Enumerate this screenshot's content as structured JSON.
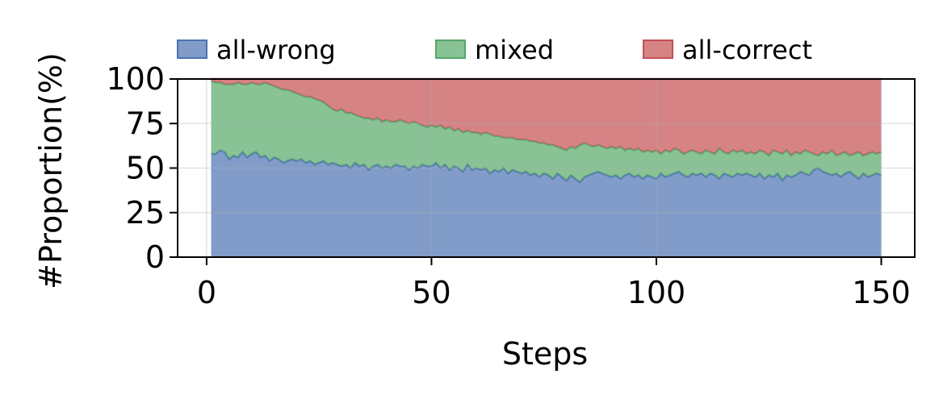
{
  "chart_data": {
    "type": "stacked_area",
    "xlabel": "Steps",
    "ylabel": "#Proportion(%)",
    "x": [
      1,
      2,
      3,
      4,
      5,
      6,
      7,
      8,
      9,
      10,
      11,
      12,
      13,
      14,
      15,
      16,
      17,
      18,
      19,
      20,
      21,
      22,
      23,
      24,
      25,
      26,
      27,
      28,
      29,
      30,
      31,
      32,
      33,
      34,
      35,
      36,
      37,
      38,
      39,
      40,
      41,
      42,
      43,
      44,
      45,
      46,
      47,
      48,
      49,
      50,
      51,
      52,
      53,
      54,
      55,
      56,
      57,
      58,
      59,
      60,
      61,
      62,
      63,
      64,
      65,
      66,
      67,
      68,
      69,
      70,
      71,
      72,
      73,
      74,
      75,
      76,
      77,
      78,
      79,
      80,
      81,
      82,
      83,
      84,
      85,
      86,
      87,
      88,
      89,
      90,
      91,
      92,
      93,
      94,
      95,
      96,
      97,
      98,
      99,
      100,
      101,
      102,
      103,
      104,
      105,
      106,
      107,
      108,
      109,
      110,
      111,
      112,
      113,
      114,
      115,
      116,
      117,
      118,
      119,
      120,
      121,
      122,
      123,
      124,
      125,
      126,
      127,
      128,
      129,
      130,
      131,
      132,
      133,
      134,
      135,
      136,
      137,
      138,
      139,
      140,
      141,
      142,
      143,
      144,
      145,
      146,
      147,
      148,
      149,
      150
    ],
    "series": [
      {
        "name": "all-wrong",
        "color": "#4c72b0",
        "values": [
          58,
          58,
          60,
          59,
          55,
          57,
          56,
          59,
          56,
          58,
          59,
          56,
          57,
          54,
          56,
          55,
          53,
          54,
          55,
          54,
          55,
          53,
          54,
          52,
          53,
          54,
          52,
          53,
          52,
          51,
          52,
          50,
          53,
          51,
          52,
          49,
          51,
          52,
          50,
          51,
          50,
          52,
          51,
          51,
          49,
          51,
          50,
          52,
          51,
          51,
          53,
          50,
          52,
          49,
          51,
          50,
          48,
          52,
          49,
          50,
          49,
          50,
          47,
          49,
          48,
          50,
          47,
          49,
          48,
          47,
          48,
          46,
          47,
          45,
          47,
          46,
          44,
          47,
          45,
          43,
          46,
          44,
          42,
          45,
          46,
          47,
          48,
          47,
          46,
          45,
          46,
          44,
          46,
          47,
          45,
          46,
          44,
          46,
          45,
          44,
          47,
          45,
          46,
          47,
          48,
          46,
          45,
          47,
          46,
          47,
          45,
          47,
          46,
          44,
          47,
          46,
          45,
          47,
          46,
          47,
          46,
          45,
          47,
          44,
          46,
          45,
          47,
          43,
          46,
          45,
          46,
          48,
          47,
          46,
          49,
          50,
          48,
          47,
          46,
          47,
          45,
          47,
          48,
          46,
          44,
          47,
          45,
          46,
          47,
          46
        ]
      },
      {
        "name": "mixed",
        "color": "#55a868",
        "values": [
          41,
          40,
          38,
          38,
          42,
          40,
          42,
          38,
          41,
          40,
          38,
          41,
          41,
          43,
          40,
          40,
          41,
          40,
          38,
          38,
          36,
          37,
          36,
          37,
          35,
          33,
          33,
          30,
          30,
          32,
          29,
          31,
          27,
          28,
          26,
          29,
          26,
          26,
          26,
          26,
          26,
          24,
          26,
          25,
          26,
          25,
          25,
          22,
          22,
          23,
          20,
          24,
          20,
          24,
          20,
          22,
          22,
          19,
          21,
          20,
          20,
          20,
          22,
          19,
          20,
          17,
          20,
          18,
          18,
          19,
          18,
          19,
          18,
          19,
          17,
          17,
          19,
          15,
          16,
          17,
          16,
          17,
          21,
          19,
          17,
          15,
          15,
          15,
          15,
          17,
          15,
          18,
          14,
          14,
          15,
          15,
          15,
          14,
          14,
          16,
          11,
          15,
          13,
          14,
          12,
          12,
          14,
          13,
          13,
          11,
          15,
          12,
          12,
          17,
          12,
          12,
          15,
          12,
          14,
          11,
          13,
          13,
          13,
          15,
          11,
          15,
          12,
          15,
          14,
          12,
          13,
          10,
          13,
          13,
          9,
          7,
          11,
          11,
          14,
          10,
          13,
          12,
          9,
          12,
          15,
          10,
          13,
          13,
          11,
          13
        ]
      },
      {
        "name": "all-correct",
        "color": "#c44e52",
        "values": [
          1,
          2,
          2,
          3,
          3,
          3,
          2,
          3,
          3,
          2,
          3,
          3,
          2,
          3,
          4,
          5,
          6,
          6,
          7,
          8,
          9,
          10,
          10,
          11,
          12,
          13,
          15,
          17,
          18,
          17,
          19,
          19,
          20,
          21,
          22,
          22,
          23,
          22,
          24,
          23,
          24,
          24,
          23,
          24,
          25,
          24,
          25,
          26,
          27,
          26,
          27,
          26,
          28,
          27,
          29,
          28,
          30,
          29,
          30,
          30,
          31,
          30,
          31,
          32,
          32,
          33,
          33,
          33,
          34,
          34,
          34,
          35,
          35,
          36,
          36,
          37,
          37,
          38,
          39,
          40,
          38,
          39,
          37,
          36,
          37,
          38,
          37,
          38,
          39,
          38,
          39,
          38,
          40,
          39,
          40,
          39,
          41,
          40,
          41,
          40,
          42,
          40,
          41,
          39,
          40,
          42,
          41,
          40,
          41,
          42,
          40,
          41,
          42,
          39,
          41,
          42,
          40,
          41,
          40,
          42,
          41,
          42,
          40,
          41,
          43,
          40,
          41,
          42,
          40,
          43,
          41,
          42,
          40,
          41,
          42,
          43,
          41,
          42,
          40,
          43,
          42,
          41,
          43,
          42,
          41,
          43,
          42,
          41,
          42,
          41
        ]
      }
    ],
    "xlim": [
      -6.45,
      157.45
    ],
    "ylim": [
      0,
      100
    ],
    "xticks": [
      0,
      50,
      100,
      150
    ],
    "yticks": [
      0,
      25,
      50,
      75,
      100
    ],
    "grid": true,
    "legend": "top"
  }
}
